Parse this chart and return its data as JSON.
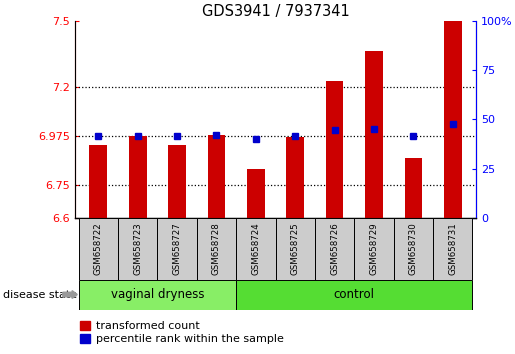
{
  "title": "GDS3941 / 7937341",
  "samples": [
    "GSM658722",
    "GSM658723",
    "GSM658727",
    "GSM658728",
    "GSM658724",
    "GSM658725",
    "GSM658726",
    "GSM658729",
    "GSM658730",
    "GSM658731"
  ],
  "red_values": [
    6.935,
    6.975,
    6.935,
    6.978,
    6.825,
    6.97,
    7.225,
    7.365,
    6.875,
    7.5
  ],
  "blue_values_left": [
    6.975,
    6.975,
    6.975,
    6.978,
    6.96,
    6.973,
    7.0,
    7.005,
    6.973,
    7.03
  ],
  "ylim_left": [
    6.6,
    7.5
  ],
  "ylim_right": [
    0,
    100
  ],
  "yticks_left": [
    6.6,
    6.75,
    6.975,
    7.2,
    7.5
  ],
  "yticks_right": [
    0,
    25,
    50,
    75,
    100
  ],
  "ytick_labels_left": [
    "6.6",
    "6.75",
    "6.975",
    "7.2",
    "7.5"
  ],
  "ytick_labels_right": [
    "0",
    "25",
    "50",
    "75",
    "100%"
  ],
  "hlines": [
    6.75,
    6.975,
    7.2
  ],
  "group1_label": "vaginal dryness",
  "group2_label": "control",
  "group1_count": 4,
  "group2_count": 6,
  "disease_state_label": "disease state",
  "legend1": "transformed count",
  "legend2": "percentile rank within the sample",
  "bar_color": "#CC0000",
  "dot_color": "#0000CC",
  "group1_bg": "#88EE66",
  "group2_bg": "#55DD33",
  "sample_bg": "#CCCCCC",
  "bar_bottom": 6.6,
  "bar_width": 0.45
}
